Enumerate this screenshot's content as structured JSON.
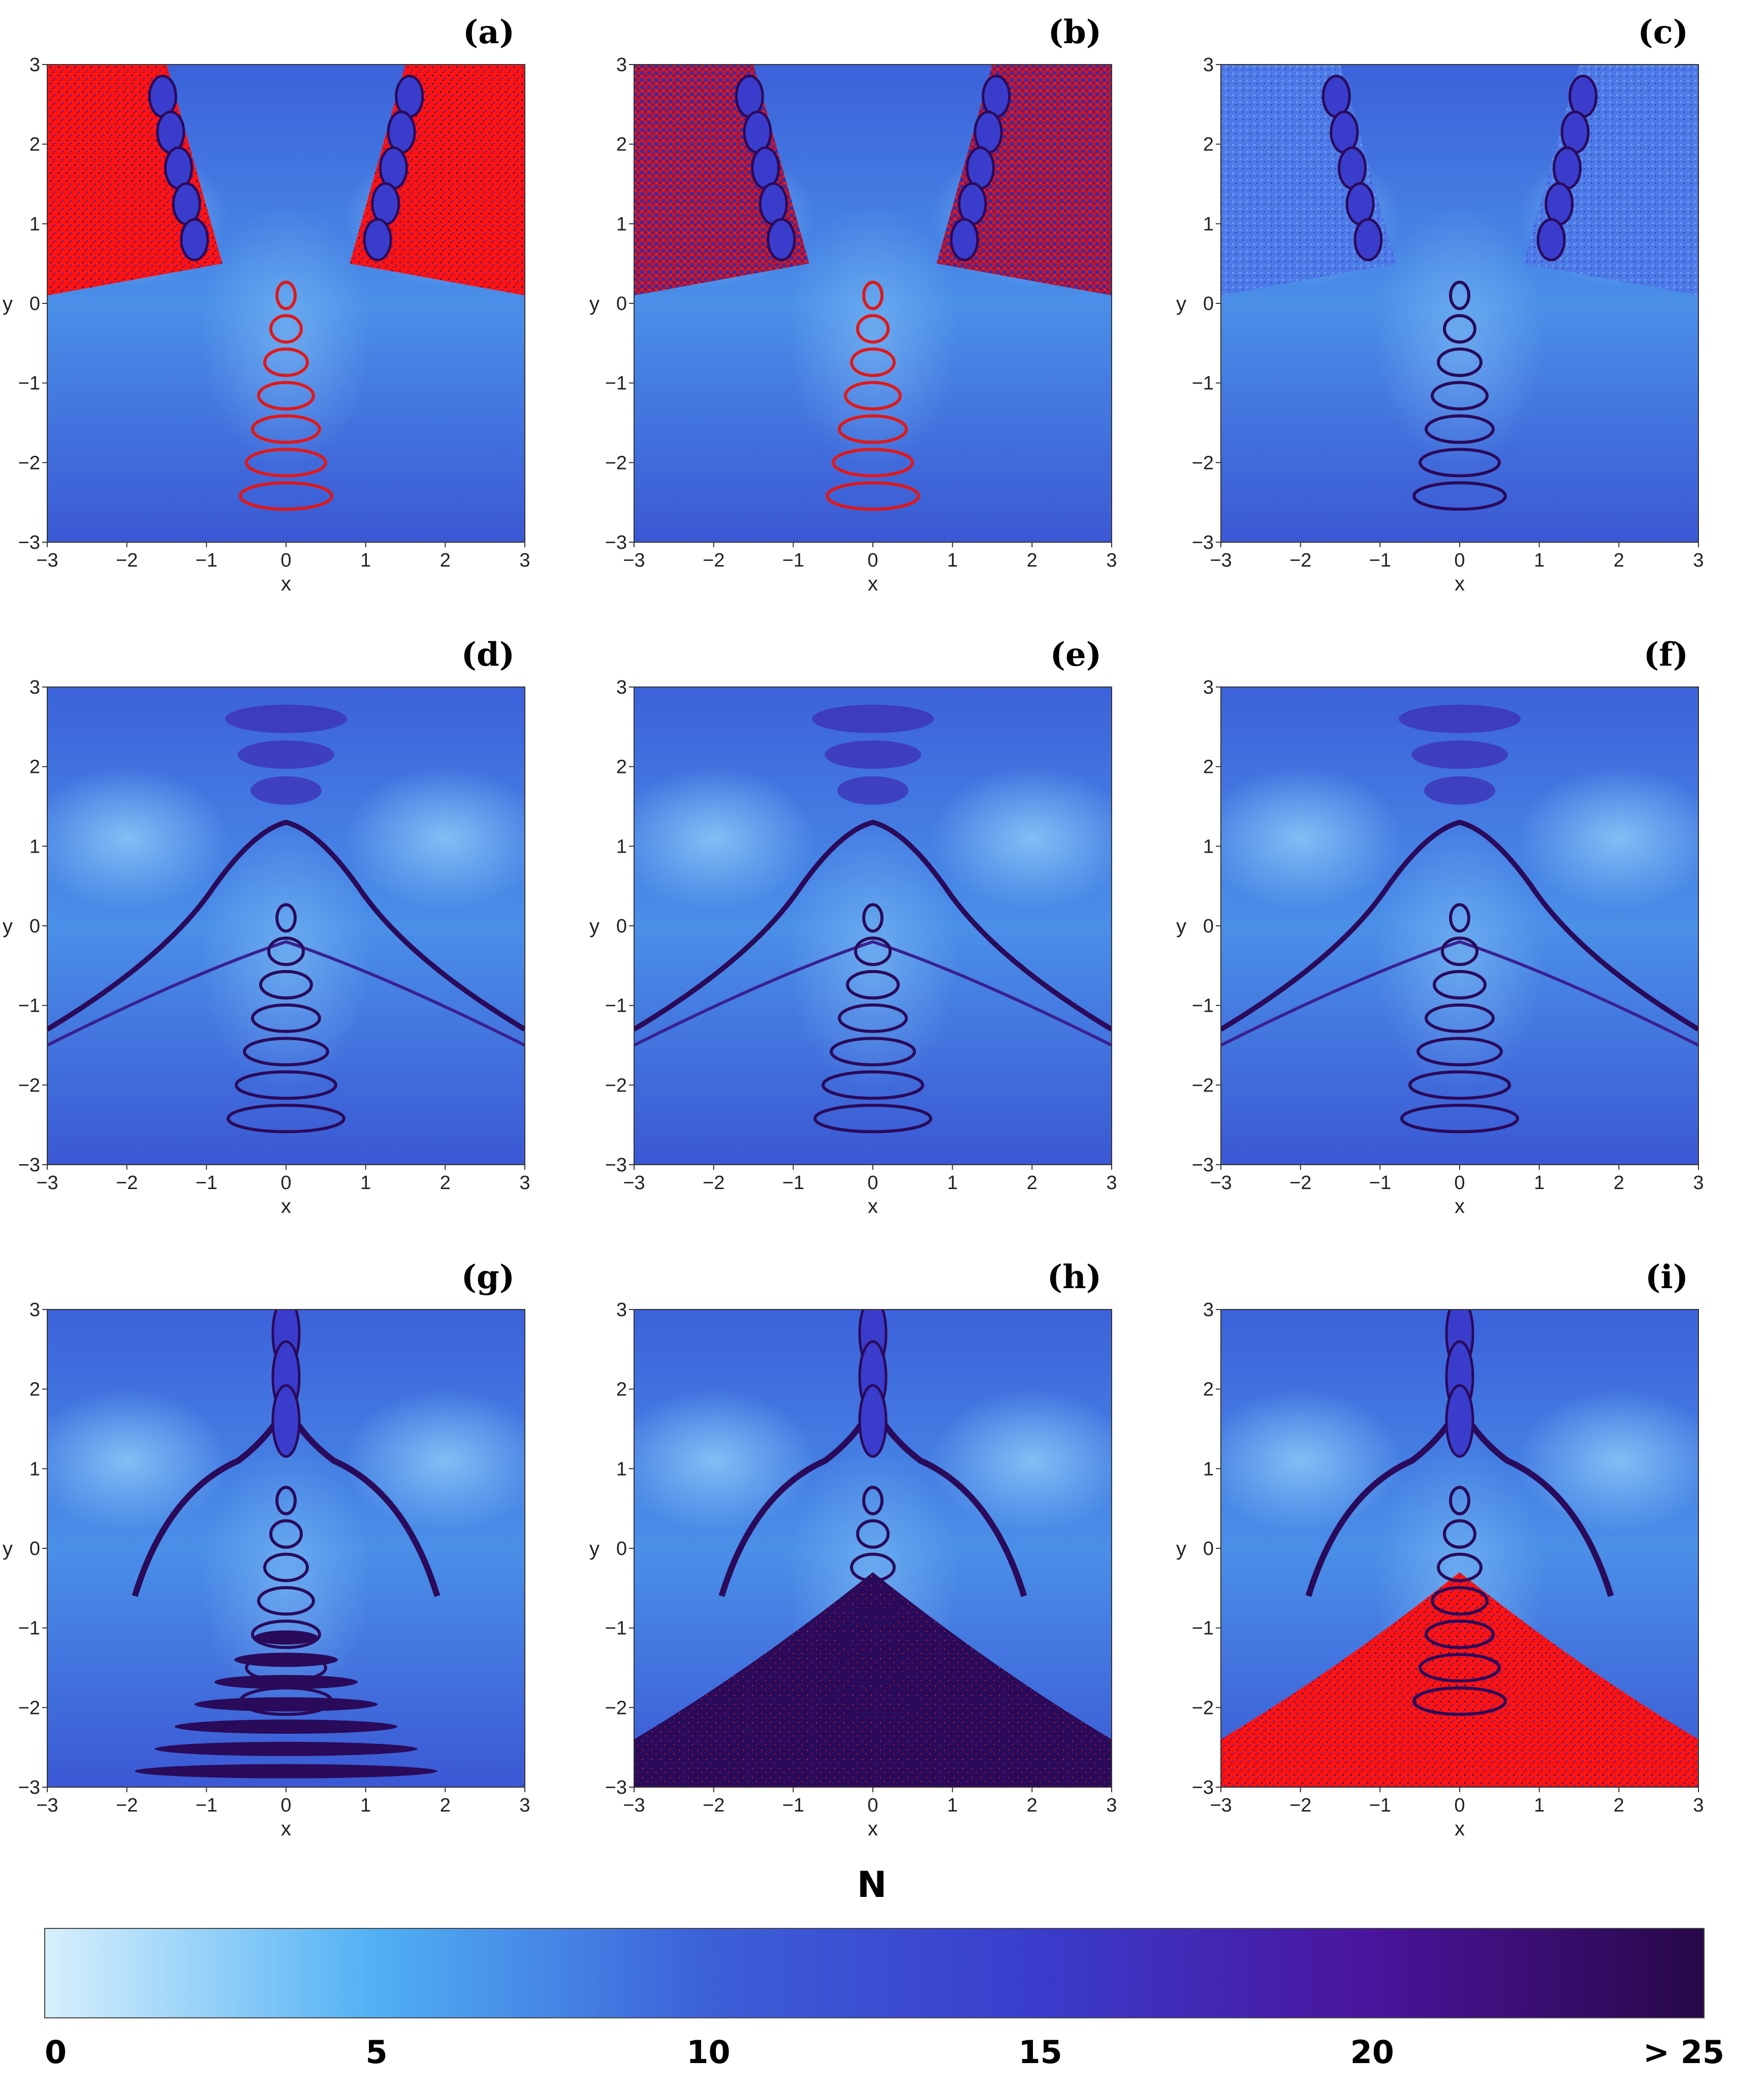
{
  "chart_data": {
    "type": "heatmap",
    "colorbar": {
      "title": "N",
      "ticks": [
        "0",
        "5",
        "10",
        "15",
        "20",
        "> 25"
      ],
      "range": [
        0,
        25
      ],
      "colors": [
        "#d8f0fc",
        "#50b0f4",
        "#3c60d8",
        "#3a3ccc",
        "#4a149c",
        "#280848"
      ]
    },
    "overflow_color": "#ff1010",
    "panels": [
      {
        "label": "(a)",
        "xlabel": "x",
        "ylabel": "y",
        "xlim": [
          -3,
          3
        ],
        "ylim": [
          -3,
          3
        ],
        "xticks": [
          "−3",
          "−2",
          "−1",
          "0",
          "1",
          "2",
          "3"
        ],
        "yticks": [
          "−3",
          "−2",
          "−1",
          "0",
          "1",
          "2",
          "3"
        ]
      },
      {
        "label": "(b)",
        "xlabel": "x",
        "ylabel": "y",
        "xlim": [
          -3,
          3
        ],
        "ylim": [
          -3,
          3
        ],
        "xticks": [
          "−3",
          "−2",
          "−1",
          "0",
          "1",
          "2",
          "3"
        ],
        "yticks": [
          "−3",
          "−2",
          "−1",
          "0",
          "1",
          "2",
          "3"
        ]
      },
      {
        "label": "(c)",
        "xlabel": "x",
        "ylabel": "y",
        "xlim": [
          -3,
          3
        ],
        "ylim": [
          -3,
          3
        ],
        "xticks": [
          "−3",
          "−2",
          "−1",
          "0",
          "1",
          "2",
          "3"
        ],
        "yticks": [
          "−3",
          "−2",
          "−1",
          "0",
          "1",
          "2",
          "3"
        ]
      },
      {
        "label": "(d)",
        "xlabel": "x",
        "ylabel": "y",
        "xlim": [
          -3,
          3
        ],
        "ylim": [
          -3,
          3
        ],
        "xticks": [
          "−3",
          "−2",
          "−1",
          "0",
          "1",
          "2",
          "3"
        ],
        "yticks": [
          "−3",
          "−2",
          "−1",
          "0",
          "1",
          "2",
          "3"
        ]
      },
      {
        "label": "(e)",
        "xlabel": "x",
        "ylabel": "y",
        "xlim": [
          -3,
          3
        ],
        "ylim": [
          -3,
          3
        ],
        "xticks": [
          "−3",
          "−2",
          "−1",
          "0",
          "1",
          "2",
          "3"
        ],
        "yticks": [
          "−3",
          "−2",
          "−1",
          "0",
          "1",
          "2",
          "3"
        ]
      },
      {
        "label": "(f)",
        "xlabel": "x",
        "ylabel": "y",
        "xlim": [
          -3,
          3
        ],
        "ylim": [
          -3,
          3
        ],
        "xticks": [
          "−3",
          "−2",
          "−1",
          "0",
          "1",
          "2",
          "3"
        ],
        "yticks": [
          "−3",
          "−2",
          "−1",
          "0",
          "1",
          "2",
          "3"
        ]
      },
      {
        "label": "(g)",
        "xlabel": "x",
        "ylabel": "y",
        "xlim": [
          -3,
          3
        ],
        "ylim": [
          -3,
          3
        ],
        "xticks": [
          "−3",
          "−2",
          "−1",
          "0",
          "1",
          "2",
          "3"
        ],
        "yticks": [
          "−3",
          "−2",
          "−1",
          "0",
          "1",
          "2",
          "3"
        ]
      },
      {
        "label": "(h)",
        "xlabel": "x",
        "ylabel": "y",
        "xlim": [
          -3,
          3
        ],
        "ylim": [
          -3,
          3
        ],
        "xticks": [
          "−3",
          "−2",
          "−1",
          "0",
          "1",
          "2",
          "3"
        ],
        "yticks": [
          "−3",
          "−2",
          "−1",
          "0",
          "1",
          "2",
          "3"
        ]
      },
      {
        "label": "(i)",
        "xlabel": "x",
        "ylabel": "y",
        "xlim": [
          -3,
          3
        ],
        "ylim": [
          -3,
          3
        ],
        "xticks": [
          "−3",
          "−2",
          "−1",
          "0",
          "1",
          "2",
          "3"
        ],
        "yticks": [
          "−3",
          "−2",
          "−1",
          "0",
          "1",
          "2",
          "3"
        ]
      }
    ]
  }
}
